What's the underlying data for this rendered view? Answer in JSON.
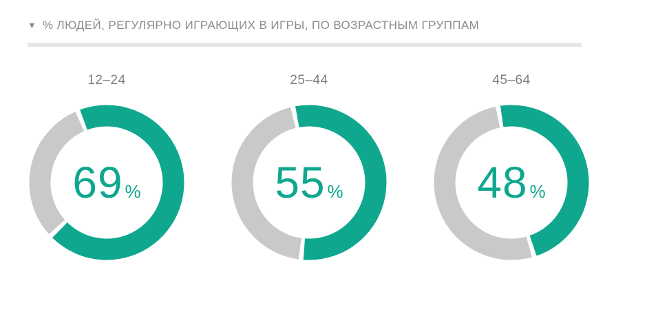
{
  "header": {
    "marker": "▼",
    "title": "% ЛЮДЕЙ, РЕГУЛЯРНО ИГРАЮЩИХ В ИГРЫ, ПО ВОЗРАСТНЫМ ГРУППАМ"
  },
  "colors": {
    "accent_teal": "#0fa78d",
    "remainder_gray": "#c9c9c9",
    "title_gray": "#8a8b8d",
    "label_gray": "#7d7f83",
    "divider_gray": "#e6e6e6"
  },
  "chart_data": {
    "type": "pie",
    "subtype": "donut-small-multiples",
    "title": "% ЛЮДЕЙ, РЕГУЛЯРНО ИГРАЮЩИХ В ИГРЫ, ПО ВОЗРАСТНЫМ ГРУППАМ",
    "unit": "%",
    "categories": [
      "12–24",
      "25–44",
      "45–64"
    ],
    "values": [
      69,
      55,
      48
    ],
    "legend": "none",
    "start_angles_deg": [
      -22,
      -12,
      -10
    ],
    "segment_gap_deg": 1.8,
    "donuts": [
      {
        "label": "12–24",
        "value": 69,
        "suffix": "%"
      },
      {
        "label": "25–44",
        "value": 55,
        "suffix": "%"
      },
      {
        "label": "45–64",
        "value": 48,
        "suffix": "%"
      }
    ]
  }
}
